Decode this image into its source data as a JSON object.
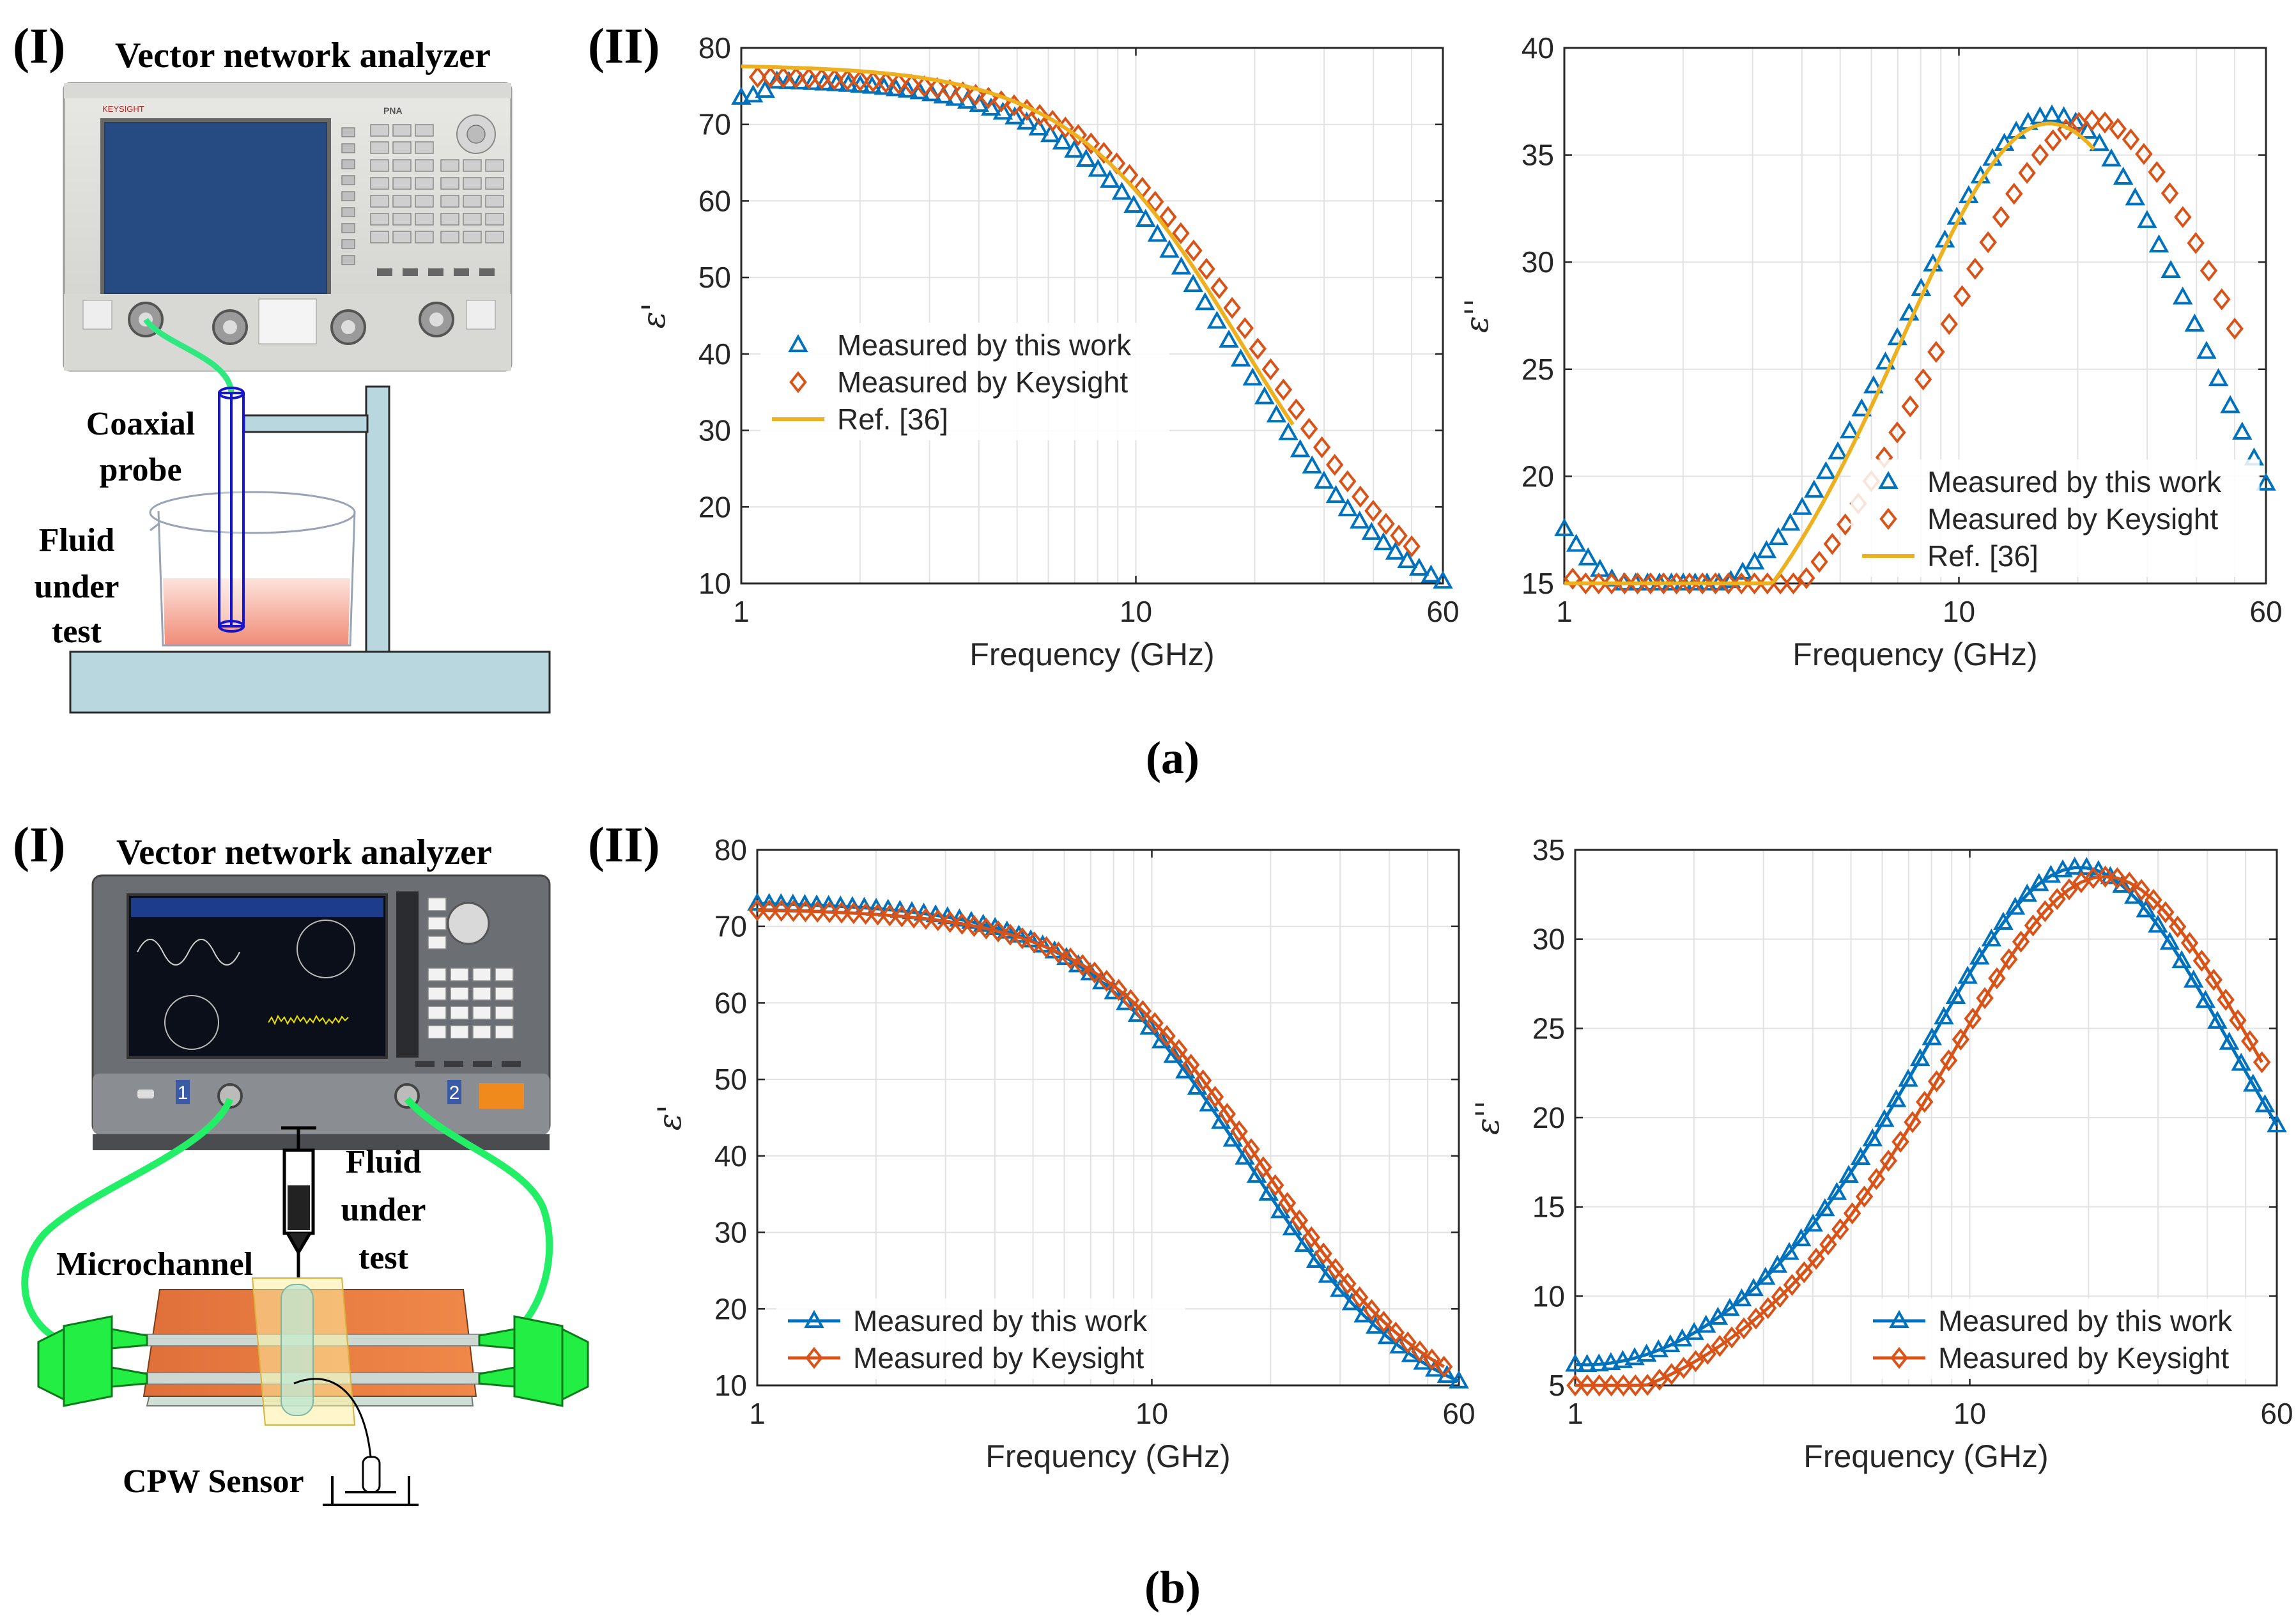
{
  "colors": {
    "blue": "#0072BD",
    "orange": "#D95319",
    "gold": "#EDB120",
    "steel": "#c8dde3",
    "green": "#22ee66",
    "fluid": "#f0a08e"
  },
  "panel_a": {
    "label_I": "(I)",
    "label_II": "(II)",
    "caption": "(a)",
    "vna_title": "Vector network analyzer",
    "probe_label_1": "Coaxial",
    "probe_label_2": "probe",
    "fluid_1": "Fluid",
    "fluid_2": "under",
    "fluid_3": "test",
    "instrument": {
      "brand": "KEYSIGHT",
      "model": "PNA"
    }
  },
  "panel_b": {
    "label_I": "(I)",
    "label_II": "(II)",
    "caption": "(b)",
    "vna_title": "Vector network analyzer",
    "fluid_1": "Fluid",
    "fluid_2": "under",
    "fluid_3": "test",
    "microchannel": "Microchannel",
    "cpw": "CPW Sensor",
    "port1": "1",
    "port2": "2"
  },
  "chart_data": [
    {
      "id": "a-real",
      "type": "scatter",
      "title": "",
      "xlabel": "Frequency (GHz)",
      "ylabel": "ε'",
      "xscale": "log",
      "xlim": [
        1,
        60
      ],
      "ylim": [
        10,
        80
      ],
      "xticks": [
        1,
        10,
        60
      ],
      "xtick_labels": [
        "1",
        "10",
        "60"
      ],
      "yticks": [
        10,
        20,
        30,
        40,
        50,
        60,
        70,
        80
      ],
      "ytick_labels": [
        "10",
        "20",
        "30",
        "40",
        "50",
        "60",
        "70",
        "80"
      ],
      "legend": "center-left",
      "series": [
        {
          "name": "Measured by this work",
          "marker": "triangle-open",
          "color": "#0072BD",
          "line": false,
          "model": {
            "kind": "debye-real",
            "es": 78,
            "einf": 5.3,
            "fr": 18,
            "offset": -0.9
          },
          "scale": 0.985,
          "xfrom": 1,
          "xto": 60,
          "n": 60,
          "firstvalues": [
            73.5,
            73.8,
            74.4
          ]
        },
        {
          "name": "Measured by Keysight",
          "marker": "diamond-open",
          "color": "#D95319",
          "line": false,
          "model": {
            "kind": "debye-real",
            "es": 77.2,
            "einf": 5.3,
            "fr": 20.5,
            "offset": -0.8
          },
          "scale": 1.0,
          "xfrom": 1.1,
          "xto": 50,
          "n": 52
        },
        {
          "name": "Ref. [36]",
          "marker": "none",
          "color": "#EDB120",
          "line": true,
          "model": {
            "kind": "debye-real",
            "es": 78,
            "einf": 5.2,
            "fr": 18.5,
            "offset": -0.2
          },
          "scale": 1.0,
          "xfrom": 1,
          "xto": 25,
          "n": 120
        }
      ]
    },
    {
      "id": "a-imag",
      "type": "scatter",
      "title": "",
      "xlabel": "Frequency (GHz)",
      "ylabel": "ε''",
      "xscale": "log",
      "xlim": [
        1,
        60
      ],
      "ylim": [
        15,
        40
      ],
      "xticks": [
        1,
        10,
        60
      ],
      "xtick_labels": [
        "1",
        "10",
        "60"
      ],
      "yticks": [
        15,
        20,
        25,
        30,
        35,
        40
      ],
      "ytick_labels": [
        "15",
        "20",
        "25",
        "30",
        "35",
        "40"
      ],
      "legend": "bottom-right",
      "series": [
        {
          "name": "Measured by this work",
          "marker": "triangle-open",
          "color": "#0072BD",
          "line": false,
          "model": {
            "kind": "imag-cond",
            "es": 78,
            "einf": 5.3,
            "fr": 17.5,
            "ion": 13.4,
            "ionexp": 1.15
          },
          "scale": 1.0,
          "xfrom": 1,
          "xto": 60,
          "n": 60
        },
        {
          "name": "Measured by Keysight",
          "marker": "diamond-open",
          "color": "#D95319",
          "line": false,
          "model": {
            "kind": "imag-cond",
            "es": 78,
            "einf": 5.3,
            "fr": 22,
            "ion": 12.5,
            "ionexp": 1.25
          },
          "scale": 1.0,
          "xfrom": 1.05,
          "xto": 50,
          "n": 52
        },
        {
          "name": "Ref. [36]",
          "marker": "none",
          "color": "#EDB120",
          "line": true,
          "model": {
            "kind": "imag-cond",
            "es": 78,
            "einf": 5.2,
            "fr": 17,
            "ion": 8.9,
            "ionexp": 1.7
          },
          "scale": 1.0,
          "xfrom": 1,
          "xto": 22,
          "n": 160
        }
      ]
    },
    {
      "id": "b-real",
      "type": "line",
      "title": "",
      "xlabel": "Frequency (GHz)",
      "ylabel": "ε'",
      "xscale": "log",
      "xlim": [
        1,
        60
      ],
      "ylim": [
        10,
        80
      ],
      "xticks": [
        1,
        10,
        60
      ],
      "xtick_labels": [
        "1",
        "10",
        "60"
      ],
      "yticks": [
        10,
        20,
        30,
        40,
        50,
        60,
        70,
        80
      ],
      "ytick_labels": [
        "10",
        "20",
        "30",
        "40",
        "50",
        "60",
        "70",
        "80"
      ],
      "legend": "bottom-left",
      "series": [
        {
          "name": "Measured by this work",
          "marker": "triangle-open",
          "color": "#0072BD",
          "line": true,
          "model": {
            "kind": "debye-real",
            "es": 73.2,
            "einf": 5.2,
            "fr": 17.5,
            "offset": 0
          },
          "scale": 1.0,
          "xfrom": 1,
          "xto": 60,
          "n": 60
        },
        {
          "name": "Measured by Keysight",
          "marker": "diamond-open",
          "color": "#D95319",
          "line": true,
          "model": {
            "kind": "debye-real",
            "es": 72.3,
            "einf": 5.3,
            "fr": 19,
            "offset": 0
          },
          "scale": 1.0,
          "xfrom": 1,
          "xto": 55,
          "n": 58
        }
      ]
    },
    {
      "id": "b-imag",
      "type": "line",
      "title": "",
      "xlabel": "Frequency (GHz)",
      "ylabel": "ε''",
      "xscale": "log",
      "xlim": [
        1,
        60
      ],
      "ylim": [
        5,
        35
      ],
      "xticks": [
        1,
        10,
        60
      ],
      "xtick_labels": [
        "1",
        "10",
        "60"
      ],
      "yticks": [
        5,
        10,
        15,
        20,
        25,
        30,
        35
      ],
      "ytick_labels": [
        "5",
        "10",
        "15",
        "20",
        "25",
        "30",
        "35"
      ],
      "legend": "bottom-right",
      "series": [
        {
          "name": "Measured by this work",
          "marker": "triangle-open",
          "color": "#0072BD",
          "line": true,
          "model": {
            "kind": "imag-cond",
            "es": 73.2,
            "einf": 5.2,
            "fr": 19,
            "ion": 2.6,
            "ionexp": 1.6
          },
          "scale": 1.0,
          "xfrom": 1,
          "xto": 60,
          "n": 60
        },
        {
          "name": "Measured by Keysight",
          "marker": "diamond-open",
          "color": "#D95319",
          "line": true,
          "model": {
            "kind": "imag-cond",
            "es": 72.3,
            "einf": 5.3,
            "fr": 22,
            "ion": 0.8,
            "ionexp": 1.6
          },
          "scale": 1.0,
          "xfrom": 1,
          "xto": 55,
          "n": 58
        }
      ]
    }
  ]
}
